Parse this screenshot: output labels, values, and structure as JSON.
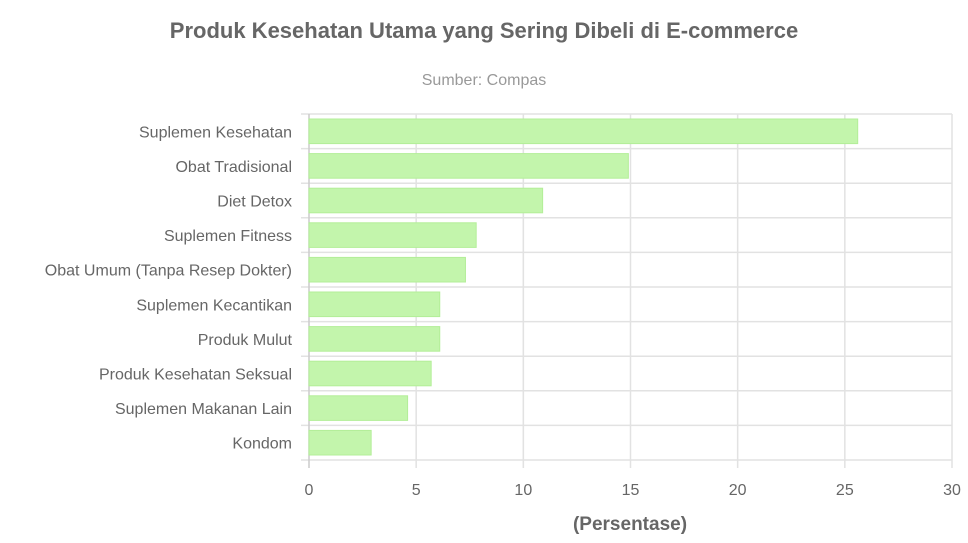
{
  "chart_data": {
    "type": "bar",
    "orientation": "horizontal",
    "title": "Produk Kesehatan Utama yang Sering Dibeli di E-commerce",
    "subtitle": "Sumber: Compas",
    "xlabel": "(Persentase)",
    "ylabel": "",
    "categories": [
      "Suplemen Kesehatan",
      "Obat Tradisional",
      "Diet Detox",
      "Suplemen Fitness",
      "Obat Umum (Tanpa Resep Dokter)",
      "Suplemen Kecantikan",
      "Produk Mulut",
      "Produk Kesehatan Seksual",
      "Suplemen Makanan Lain",
      "Kondom"
    ],
    "values": [
      25.6,
      14.9,
      10.9,
      7.8,
      7.3,
      6.1,
      6.1,
      5.7,
      4.6,
      2.9
    ],
    "xlim": [
      0,
      30
    ],
    "xticks": [
      "0",
      "5",
      "10",
      "15",
      "20",
      "25",
      "30"
    ],
    "grid": true,
    "legend": "none",
    "colors": {
      "bar_fill": "#c3f5ac",
      "bar_border": "#b3ee98",
      "grid": "#e2e2e2"
    }
  }
}
